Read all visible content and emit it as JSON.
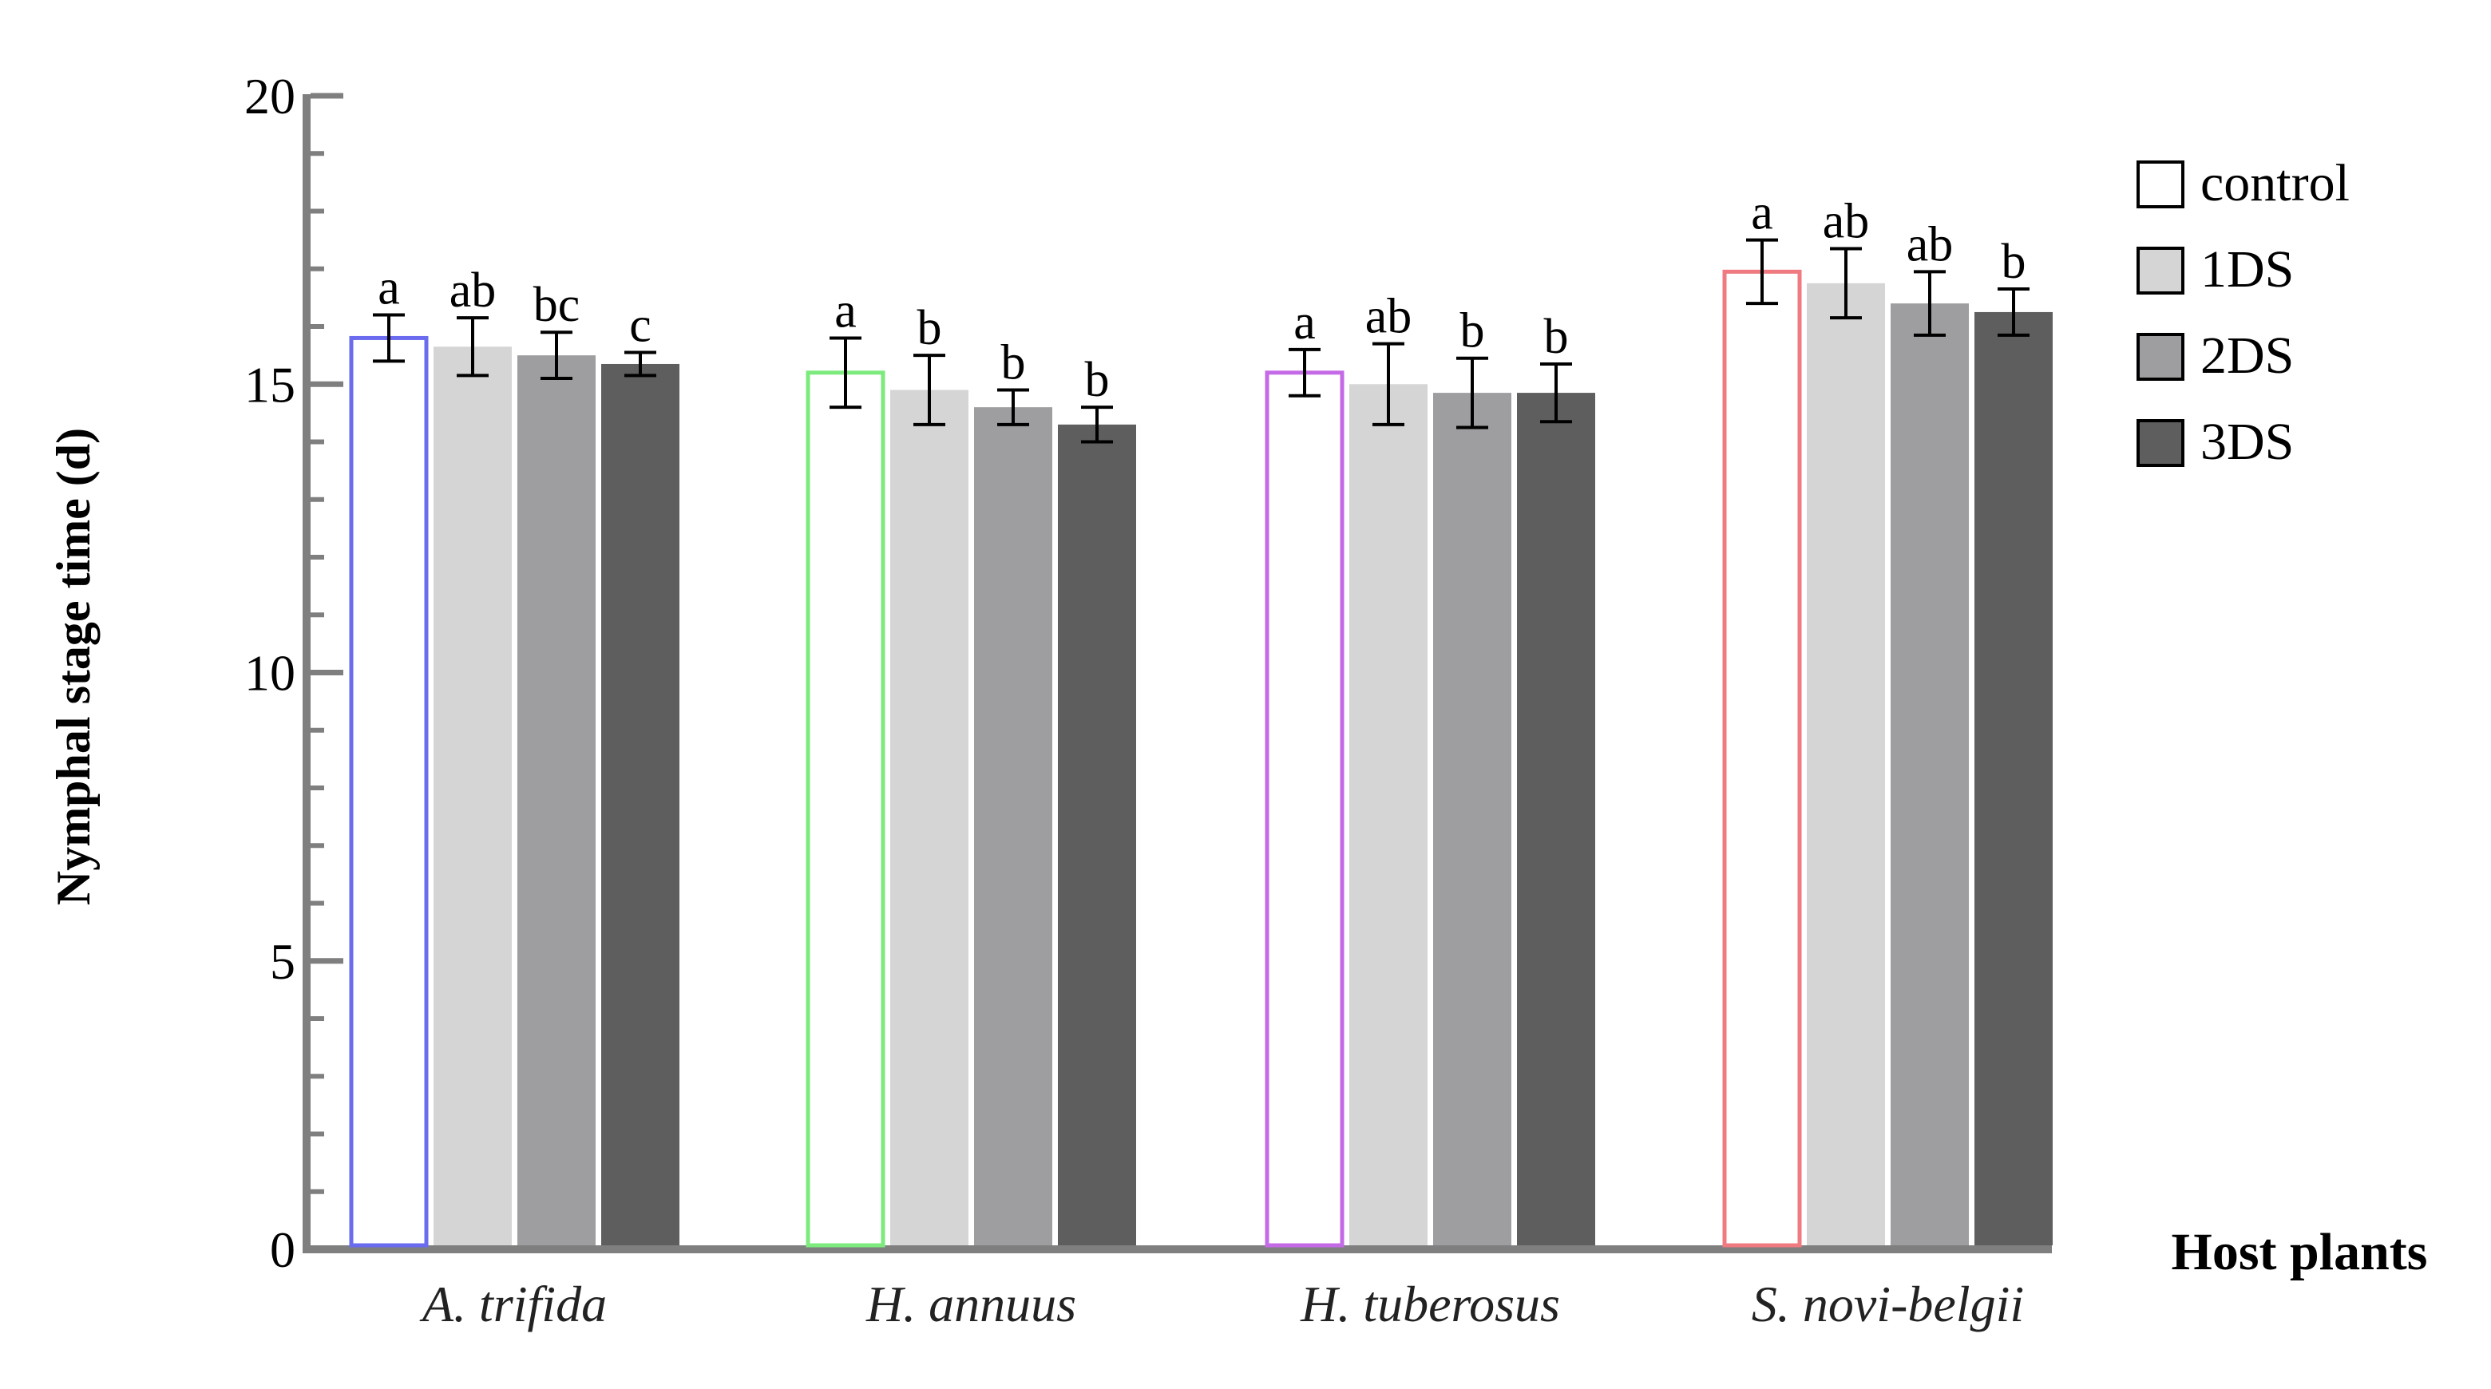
{
  "chart_data": {
    "type": "bar",
    "title": "",
    "xlabel": "Host plants",
    "ylabel": "Nymphal stage time (d)",
    "ylim": [
      0,
      20
    ],
    "yticks": [
      0,
      5,
      10,
      15,
      20
    ],
    "y_minor_step": 1,
    "categories": [
      "A. trifida",
      "H. annuus",
      "H. tuberosus",
      "S. novi-belgii"
    ],
    "control_edge_colors": [
      "#6b6bef",
      "#7dea7d",
      "#c46ae6",
      "#ef7a80"
    ],
    "legend_position": "top-right",
    "series": [
      {
        "name": "control",
        "fill": "#ffffff",
        "values": [
          15.8,
          15.2,
          15.2,
          16.95
        ],
        "errors": [
          0.4,
          0.6,
          0.4,
          0.55
        ],
        "letters": [
          "a",
          "a",
          "a",
          "a"
        ]
      },
      {
        "name": "1DS",
        "fill": "#d5d5d5",
        "values": [
          15.65,
          14.9,
          15.0,
          16.75
        ],
        "errors": [
          0.5,
          0.6,
          0.7,
          0.6
        ],
        "letters": [
          "ab",
          "b",
          "ab",
          "ab"
        ]
      },
      {
        "name": "2DS",
        "fill": "#9e9ea0",
        "values": [
          15.5,
          14.6,
          14.85,
          16.4
        ],
        "errors": [
          0.4,
          0.3,
          0.6,
          0.55
        ],
        "letters": [
          "bc",
          "b",
          "b",
          "ab"
        ]
      },
      {
        "name": "3DS",
        "fill": "#5e5e5e",
        "values": [
          15.35,
          14.3,
          14.85,
          16.25
        ],
        "errors": [
          0.2,
          0.3,
          0.5,
          0.4
        ],
        "letters": [
          "c",
          "b",
          "b",
          "b"
        ]
      }
    ]
  }
}
